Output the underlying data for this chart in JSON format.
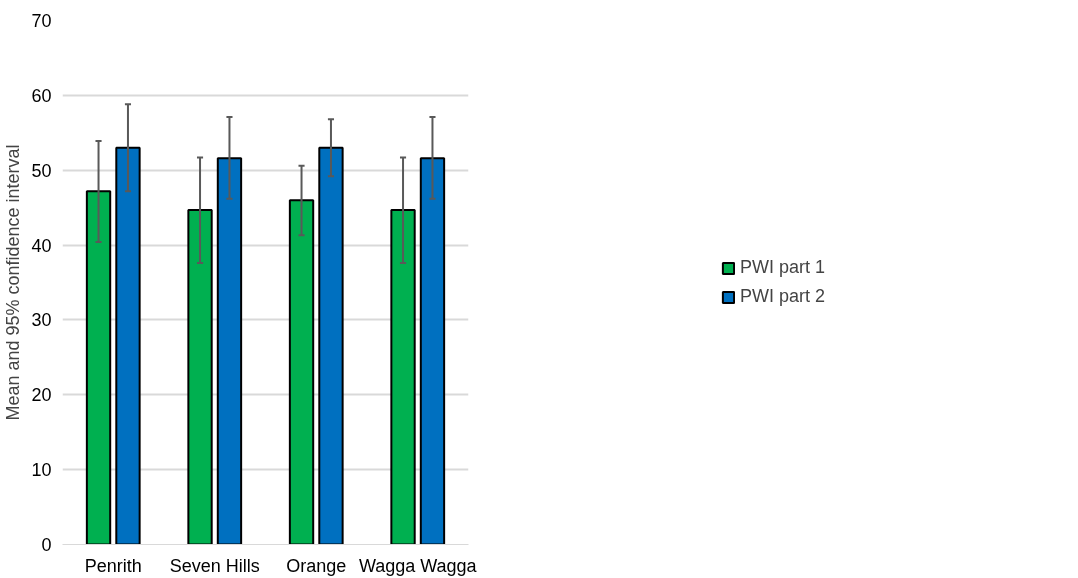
{
  "chart_data": {
    "type": "bar",
    "ylabel": "Mean and 95% confidence interval",
    "categories": [
      "Penrith",
      "Seven Hills",
      "Orange",
      "Wagga Wagga"
    ],
    "series": [
      {
        "name": "PWI part 1",
        "color": "#00b050",
        "values": [
          47.2,
          44.7,
          46.0,
          44.7
        ],
        "errors": [
          [
            40.4,
            53.9
          ],
          [
            37.6,
            51.7
          ],
          [
            41.3,
            50.6
          ],
          [
            37.6,
            51.7
          ]
        ]
      },
      {
        "name": "PWI part 2",
        "color": "#0070c0",
        "values": [
          53.0,
          51.6,
          53.0,
          51.6
        ],
        "errors": [
          [
            47.2,
            58.8
          ],
          [
            46.2,
            57.1
          ],
          [
            49.2,
            56.8
          ],
          [
            46.2,
            57.1
          ]
        ]
      }
    ],
    "ylim": [
      0,
      70
    ],
    "yticks": [
      0,
      10,
      20,
      30,
      40,
      50,
      60,
      70
    ],
    "grid": "y",
    "legend": "right"
  }
}
